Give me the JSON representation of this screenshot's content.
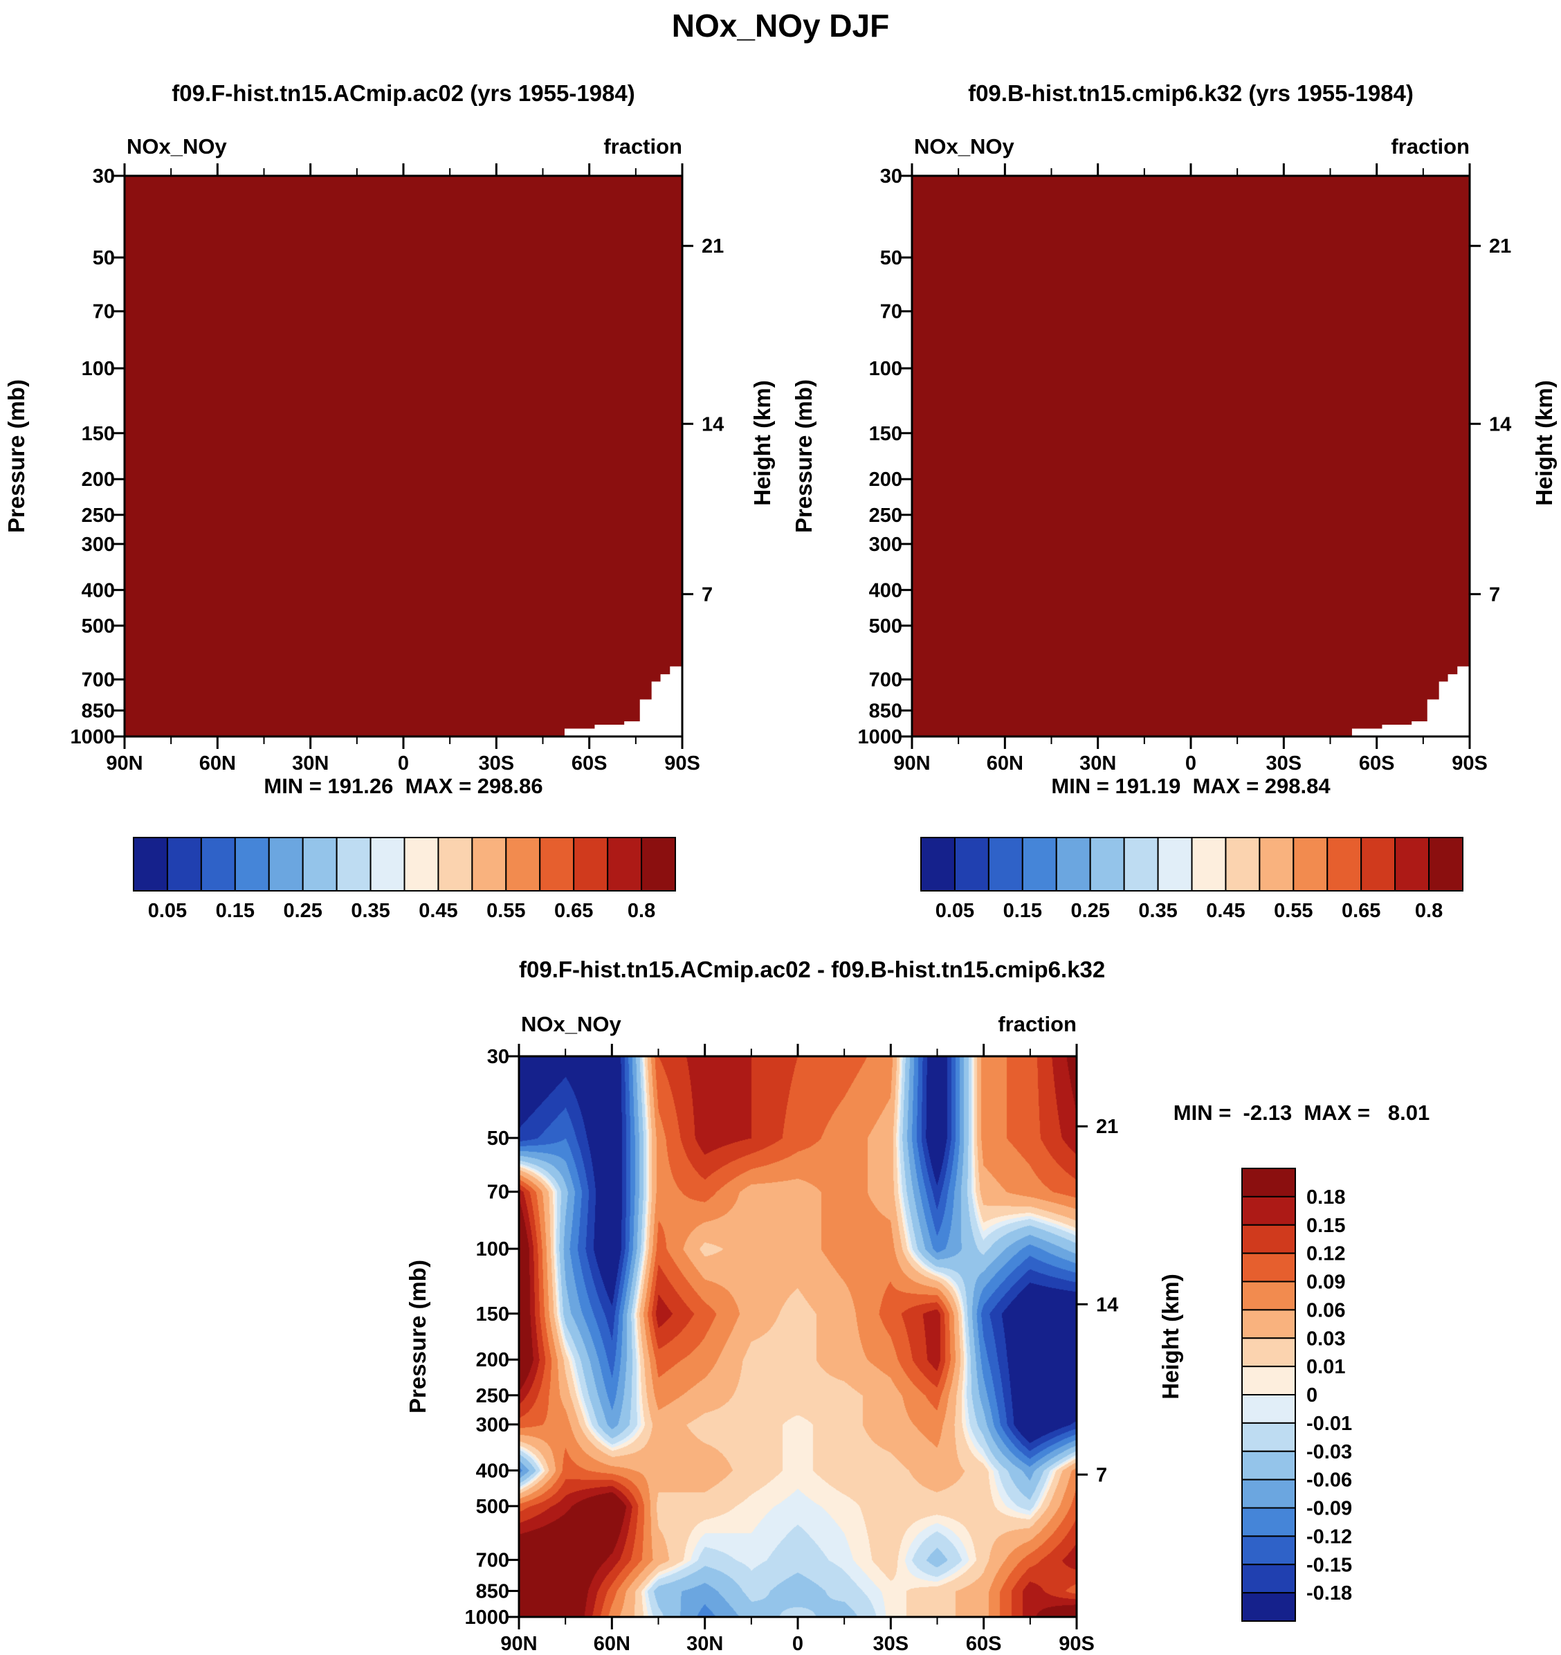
{
  "page_title": "NOx_NOy DJF",
  "axes": {
    "pressure_label": "Pressure (mb)",
    "height_label": "Height (km)",
    "pressure_ticks": [
      30,
      50,
      70,
      100,
      150,
      200,
      250,
      300,
      400,
      500,
      700,
      850,
      1000
    ],
    "height_ticks": [
      {
        "label": "21",
        "p_mb": 46.5
      },
      {
        "label": "14",
        "p_mb": 141.5
      },
      {
        "label": "7",
        "p_mb": 410.5
      }
    ],
    "lat_ticks": [
      "90N",
      "60N",
      "30N",
      "0",
      "30S",
      "60S",
      "90S"
    ]
  },
  "colors": {
    "background": "#ffffff",
    "text": "#000000",
    "frame": "#000000",
    "terrain_mask": "#ffffff",
    "palette16": [
      "#15218c",
      "#2040b0",
      "#2f62c8",
      "#4585d8",
      "#6ba6e0",
      "#94c4ea",
      "#bedcf2",
      "#e1eef8",
      "#fdeedd",
      "#fbd3af",
      "#f9b27e",
      "#f28b4f",
      "#e65f2e",
      "#d03a1d",
      "#ad1a16",
      "#8b0f0f"
    ]
  },
  "panels": [
    {
      "title": "f09.F-hist.tn15.ACmip.ac02 (yrs 1955-1984)",
      "subtitle_left": "NOx_NOy",
      "subtitle_right": "fraction",
      "stats": "MIN = 191.26  MAX = 298.86",
      "colorbar_labels": [
        "0.05",
        "0.15",
        "0.25",
        "0.35",
        "0.45",
        "0.55",
        "0.65",
        "0.8"
      ]
    },
    {
      "title": "f09.B-hist.tn15.cmip6.k32 (yrs 1955-1984)",
      "subtitle_left": "NOx_NOy",
      "subtitle_right": "fraction",
      "stats": "MIN = 191.19  MAX = 298.84",
      "colorbar_labels": [
        "0.05",
        "0.15",
        "0.25",
        "0.35",
        "0.45",
        "0.55",
        "0.65",
        "0.8"
      ]
    },
    {
      "title": "f09.F-hist.tn15.ACmip.ac02 - f09.B-hist.tn15.cmip6.k32",
      "subtitle_left": "NOx_NOy",
      "subtitle_right": "fraction",
      "stats": "MIN =  -2.13  MAX =   8.01",
      "colorbar_labels": [
        "0.18",
        "0.15",
        "0.12",
        "0.09",
        "0.06",
        "0.03",
        "0.01",
        "0",
        "-0.01",
        "-0.03",
        "-0.06",
        "-0.09",
        "-0.12",
        "-0.15",
        "-0.18"
      ]
    }
  ],
  "chart_data": [
    {
      "type": "heatmap",
      "title": "f09.F-hist.tn15.ACmip.ac02 (yrs 1955-1984)",
      "variable": "NOx_NOy",
      "units": "fraction",
      "season": "DJF",
      "x_ticks": [
        "90N",
        "60N",
        "30N",
        "0",
        "30S",
        "60S",
        "90S"
      ],
      "y_pressure_ticks_mb": [
        30,
        50,
        70,
        100,
        150,
        200,
        250,
        300,
        400,
        500,
        700,
        850,
        1000
      ],
      "height_ticks_km": [
        21,
        14,
        7
      ],
      "min": 191.26,
      "max": 298.86,
      "contour_levels": [
        0.05,
        0.1,
        0.15,
        0.2,
        0.25,
        0.3,
        0.35,
        0.4,
        0.45,
        0.5,
        0.55,
        0.6,
        0.65,
        0.7,
        0.8
      ],
      "note": "entire plotted field exceeds the top contour level 0.8, rendered as uniform darkest red; white terrain mask near the South Pole",
      "terrain_mask": [
        [
          0.789,
          1.0
        ],
        [
          0.789,
          0.986
        ],
        [
          0.843,
          0.986
        ],
        [
          0.843,
          0.979
        ],
        [
          0.896,
          0.979
        ],
        [
          0.896,
          0.973
        ],
        [
          0.924,
          0.973
        ],
        [
          0.924,
          0.934
        ],
        [
          0.945,
          0.934
        ],
        [
          0.945,
          0.902
        ],
        [
          0.961,
          0.902
        ],
        [
          0.961,
          0.889
        ],
        [
          0.978,
          0.889
        ],
        [
          0.978,
          0.875
        ],
        [
          1.0,
          0.875
        ],
        [
          1.0,
          1.0
        ]
      ]
    },
    {
      "type": "heatmap",
      "title": "f09.B-hist.tn15.cmip6.k32 (yrs 1955-1984)",
      "variable": "NOx_NOy",
      "units": "fraction",
      "season": "DJF",
      "x_ticks": [
        "90N",
        "60N",
        "30N",
        "0",
        "30S",
        "60S",
        "90S"
      ],
      "y_pressure_ticks_mb": [
        30,
        50,
        70,
        100,
        150,
        200,
        250,
        300,
        400,
        500,
        700,
        850,
        1000
      ],
      "height_ticks_km": [
        21,
        14,
        7
      ],
      "min": 191.19,
      "max": 298.84,
      "contour_levels": [
        0.05,
        0.1,
        0.15,
        0.2,
        0.25,
        0.3,
        0.35,
        0.4,
        0.45,
        0.5,
        0.55,
        0.6,
        0.65,
        0.7,
        0.8
      ],
      "note": "entire plotted field exceeds the top contour level 0.8, rendered as uniform darkest red; white terrain mask near the South Pole",
      "terrain_mask": [
        [
          0.789,
          1.0
        ],
        [
          0.789,
          0.986
        ],
        [
          0.843,
          0.986
        ],
        [
          0.843,
          0.979
        ],
        [
          0.896,
          0.979
        ],
        [
          0.896,
          0.973
        ],
        [
          0.924,
          0.973
        ],
        [
          0.924,
          0.934
        ],
        [
          0.945,
          0.934
        ],
        [
          0.945,
          0.902
        ],
        [
          0.961,
          0.902
        ],
        [
          0.961,
          0.889
        ],
        [
          0.978,
          0.889
        ],
        [
          0.978,
          0.875
        ],
        [
          1.0,
          0.875
        ],
        [
          1.0,
          1.0
        ]
      ]
    },
    {
      "type": "heatmap",
      "title": "f09.F-hist.tn15.ACmip.ac02 - f09.B-hist.tn15.cmip6.k32",
      "variable": "NOx_NOy",
      "units": "fraction",
      "min": -2.13,
      "max": 8.01,
      "levels": [
        -0.18,
        -0.15,
        -0.12,
        -0.09,
        -0.06,
        -0.03,
        -0.01,
        0,
        0.01,
        0.03,
        0.06,
        0.09,
        0.12,
        0.15,
        0.18
      ],
      "x_lat_deg": [
        90,
        75,
        60,
        45,
        30,
        15,
        0,
        -15,
        -30,
        -45,
        -60,
        -75,
        -90
      ],
      "y_pressure_mb": [
        30,
        50,
        70,
        100,
        150,
        200,
        250,
        300,
        400,
        500,
        700,
        850,
        1000
      ],
      "values": [
        [
          -0.25,
          -0.2,
          -0.25,
          0.12,
          0.17,
          0.15,
          0.12,
          0.105,
          0.075,
          -0.25,
          0.075,
          0.105,
          0.2
        ],
        [
          -0.17,
          -0.12,
          -0.25,
          0.075,
          0.17,
          0.15,
          0.105,
          0.075,
          0.045,
          -0.25,
          0.075,
          0.105,
          0.17
        ],
        [
          0.17,
          -0.05,
          -0.25,
          0.075,
          0.105,
          0.045,
          0.045,
          0.075,
          0.045,
          -0.17,
          0.045,
          0.075,
          0.105
        ],
        [
          0.25,
          -0.075,
          -0.25,
          0.105,
          0.02,
          0.045,
          0.045,
          0.075,
          0.075,
          -0.105,
          -0.02,
          -0.105,
          -0.045
        ],
        [
          0.25,
          -0.045,
          -0.17,
          0.17,
          0.105,
          0.045,
          0.02,
          0.045,
          0.105,
          0.17,
          -0.135,
          -0.25,
          -0.25
        ],
        [
          0.25,
          0.02,
          -0.135,
          0.105,
          0.075,
          0.02,
          0.02,
          0.045,
          0.075,
          0.17,
          -0.105,
          -0.25,
          -0.25
        ],
        [
          0.17,
          0.045,
          -0.105,
          0.075,
          0.045,
          0.02,
          0.02,
          0.02,
          0.045,
          0.105,
          -0.075,
          -0.25,
          -0.25
        ],
        [
          0.105,
          0.075,
          -0.075,
          0.045,
          0.02,
          0.02,
          0.005,
          0.02,
          0.045,
          0.075,
          -0.045,
          -0.25,
          -0.17
        ],
        [
          -0.105,
          0.105,
          0.075,
          0.045,
          0.045,
          0.02,
          0.005,
          0.02,
          0.02,
          0.045,
          0.02,
          -0.075,
          0.075
        ],
        [
          0.105,
          0.17,
          0.25,
          0.02,
          0.02,
          0.005,
          -0.005,
          0.005,
          0.02,
          0.02,
          0.02,
          -0.02,
          0.105
        ],
        [
          0.25,
          0.25,
          0.17,
          0.045,
          -0.02,
          -0.005,
          -0.02,
          -0.005,
          0.02,
          -0.045,
          0.02,
          0.105,
          0.17
        ],
        [
          0.25,
          0.25,
          0.105,
          -0.045,
          -0.075,
          -0.02,
          -0.045,
          -0.02,
          0.005,
          0.02,
          0.045,
          0.17,
          0.105
        ],
        [
          0.25,
          0.25,
          0.075,
          -0.02,
          -0.105,
          -0.045,
          -0.02,
          -0.045,
          0.005,
          0.02,
          0.045,
          0.17,
          0.25
        ]
      ]
    }
  ]
}
